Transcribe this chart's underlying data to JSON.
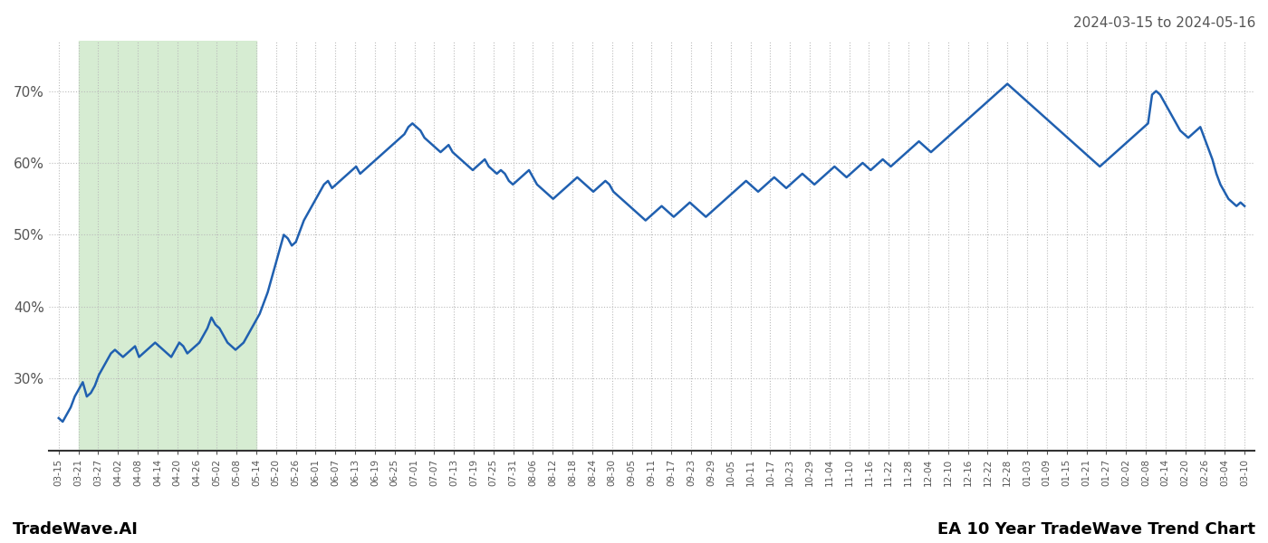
{
  "title_top_right": "2024-03-15 to 2024-05-16",
  "bottom_left": "TradeWave.AI",
  "bottom_right": "EA 10 Year TradeWave Trend Chart",
  "highlight_color": "#d6ecd2",
  "line_color": "#2060b0",
  "line_width": 1.8,
  "background_color": "#ffffff",
  "grid_color": "#bbbbbb",
  "ylim": [
    20,
    77
  ],
  "yticks": [
    30,
    40,
    50,
    60,
    70
  ],
  "highlight_start_label": "03-21",
  "highlight_end_label": "05-14",
  "x_labels": [
    "03-15",
    "03-21",
    "03-27",
    "04-02",
    "04-08",
    "04-14",
    "04-20",
    "04-26",
    "05-02",
    "05-08",
    "05-14",
    "05-20",
    "05-26",
    "06-01",
    "06-07",
    "06-13",
    "06-19",
    "06-25",
    "07-01",
    "07-07",
    "07-13",
    "07-19",
    "07-25",
    "07-31",
    "08-06",
    "08-12",
    "08-18",
    "08-24",
    "08-30",
    "09-05",
    "09-11",
    "09-17",
    "09-23",
    "09-29",
    "10-05",
    "10-11",
    "10-17",
    "10-23",
    "10-29",
    "11-04",
    "11-10",
    "11-16",
    "11-22",
    "11-28",
    "12-04",
    "12-10",
    "12-16",
    "12-22",
    "12-28",
    "01-03",
    "01-09",
    "01-15",
    "01-21",
    "01-27",
    "02-02",
    "02-08",
    "02-14",
    "02-20",
    "02-26",
    "03-04",
    "03-10"
  ],
  "values": [
    24.5,
    24.0,
    25.0,
    26.0,
    27.5,
    28.5,
    29.5,
    27.5,
    28.0,
    29.0,
    30.5,
    31.5,
    32.5,
    33.5,
    34.0,
    33.5,
    33.0,
    33.5,
    34.0,
    34.5,
    33.0,
    33.5,
    34.0,
    34.5,
    35.0,
    34.5,
    34.0,
    33.5,
    33.0,
    34.0,
    35.0,
    34.5,
    33.5,
    34.0,
    34.5,
    35.0,
    36.0,
    37.0,
    38.5,
    37.5,
    37.0,
    36.0,
    35.0,
    34.5,
    34.0,
    34.5,
    35.0,
    36.0,
    37.0,
    38.0,
    39.0,
    40.5,
    42.0,
    44.0,
    46.0,
    48.0,
    50.0,
    49.5,
    48.5,
    49.0,
    50.5,
    52.0,
    53.0,
    54.0,
    55.0,
    56.0,
    57.0,
    57.5,
    56.5,
    57.0,
    57.5,
    58.0,
    58.5,
    59.0,
    59.5,
    58.5,
    59.0,
    59.5,
    60.0,
    60.5,
    61.0,
    61.5,
    62.0,
    62.5,
    63.0,
    63.5,
    64.0,
    65.0,
    65.5,
    65.0,
    64.5,
    63.5,
    63.0,
    62.5,
    62.0,
    61.5,
    62.0,
    62.5,
    61.5,
    61.0,
    60.5,
    60.0,
    59.5,
    59.0,
    59.5,
    60.0,
    60.5,
    59.5,
    59.0,
    58.5,
    59.0,
    58.5,
    57.5,
    57.0,
    57.5,
    58.0,
    58.5,
    59.0,
    58.0,
    57.0,
    56.5,
    56.0,
    55.5,
    55.0,
    55.5,
    56.0,
    56.5,
    57.0,
    57.5,
    58.0,
    57.5,
    57.0,
    56.5,
    56.0,
    56.5,
    57.0,
    57.5,
    57.0,
    56.0,
    55.5,
    55.0,
    54.5,
    54.0,
    53.5,
    53.0,
    52.5,
    52.0,
    52.5,
    53.0,
    53.5,
    54.0,
    53.5,
    53.0,
    52.5,
    53.0,
    53.5,
    54.0,
    54.5,
    54.0,
    53.5,
    53.0,
    52.5,
    53.0,
    53.5,
    54.0,
    54.5,
    55.0,
    55.5,
    56.0,
    56.5,
    57.0,
    57.5,
    57.0,
    56.5,
    56.0,
    56.5,
    57.0,
    57.5,
    58.0,
    57.5,
    57.0,
    56.5,
    57.0,
    57.5,
    58.0,
    58.5,
    58.0,
    57.5,
    57.0,
    57.5,
    58.0,
    58.5,
    59.0,
    59.5,
    59.0,
    58.5,
    58.0,
    58.5,
    59.0,
    59.5,
    60.0,
    59.5,
    59.0,
    59.5,
    60.0,
    60.5,
    60.0,
    59.5,
    60.0,
    60.5,
    61.0,
    61.5,
    62.0,
    62.5,
    63.0,
    62.5,
    62.0,
    61.5,
    62.0,
    62.5,
    63.0,
    63.5,
    64.0,
    64.5,
    65.0,
    65.5,
    66.0,
    66.5,
    67.0,
    67.5,
    68.0,
    68.5,
    69.0,
    69.5,
    70.0,
    70.5,
    71.0,
    70.5,
    70.0,
    69.5,
    69.0,
    68.5,
    68.0,
    67.5,
    67.0,
    66.5,
    66.0,
    65.5,
    65.0,
    64.5,
    64.0,
    63.5,
    63.0,
    62.5,
    62.0,
    61.5,
    61.0,
    60.5,
    60.0,
    59.5,
    60.0,
    60.5,
    61.0,
    61.5,
    62.0,
    62.5,
    63.0,
    63.5,
    64.0,
    64.5,
    65.0,
    65.5,
    69.5,
    70.0,
    69.5,
    68.5,
    67.5,
    66.5,
    65.5,
    64.5,
    64.0,
    63.5,
    64.0,
    64.5,
    65.0,
    63.5,
    62.0,
    60.5,
    58.5,
    57.0,
    56.0,
    55.0,
    54.5,
    54.0,
    54.5,
    54.0
  ]
}
